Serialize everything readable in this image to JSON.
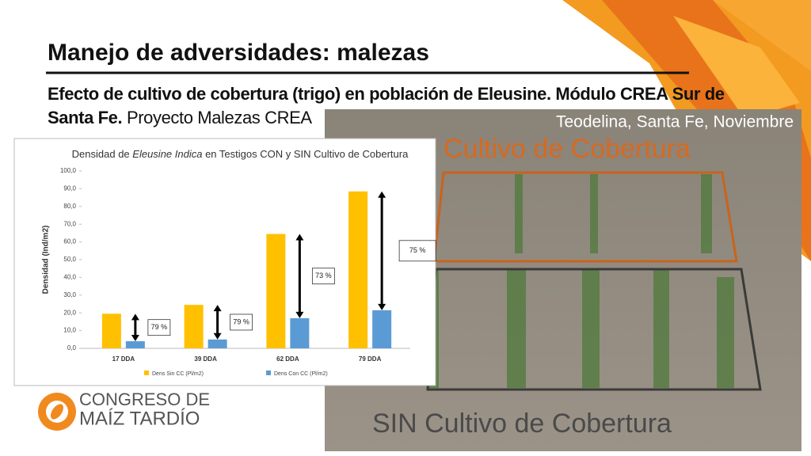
{
  "slide": {
    "title": "Manejo de adversidades: malezas",
    "subtitle_bold": "Efecto de cultivo de cobertura (trigo) en población de Eleusine. Módulo CREA Sur de Santa Fe.",
    "subtitle_normal": "Proyecto Malezas CREA",
    "photo_caption": "Teodelina, Santa Fe, Noviembre",
    "photo_label_top": "Cultivo de Cobertura",
    "photo_label_bottom": "SIN Cultivo de Cobertura",
    "logo_line1": "CONGRESO DE",
    "logo_line2": "MAÍZ TARDÍO"
  },
  "chart_data": {
    "type": "bar",
    "title_parts": [
      "Densidad de ",
      "Eleusine Indica",
      " en Testigos CON y SIN Cultivo de Cobertura"
    ],
    "y_label": "Densidad (Ind/m2)",
    "categories": [
      "17 DDA",
      "39 DDA",
      "62 DDA",
      "79 DDA"
    ],
    "series": [
      {
        "name": "Dens Sin CC (Pl/m2)",
        "color": "#ffc000",
        "values": [
          19.5,
          24.5,
          64.5,
          88.5
        ]
      },
      {
        "name": "Dens Con CC (Pl/m2)",
        "color": "#5b9bd5",
        "values": [
          4,
          5,
          17,
          21.5
        ]
      }
    ],
    "annotations": [
      "79 %",
      "79 %",
      "73 %",
      "75 %"
    ],
    "ylim": [
      0,
      100
    ],
    "yticks": [
      {
        "value": 0,
        "label": "0,0"
      },
      {
        "value": 10,
        "label": "10,0"
      },
      {
        "value": 20,
        "label": "20,0"
      },
      {
        "value": 30,
        "label": "30,0"
      },
      {
        "value": 40,
        "label": "40,0"
      },
      {
        "value": 50,
        "label": "50,0"
      },
      {
        "value": 60,
        "label": "60,0"
      },
      {
        "value": 70,
        "label": "70,0"
      },
      {
        "value": 80,
        "label": "80,0"
      },
      {
        "value": 90,
        "label": "90,0"
      },
      {
        "value": 100,
        "label": "100,0"
      }
    ],
    "grid": false
  }
}
